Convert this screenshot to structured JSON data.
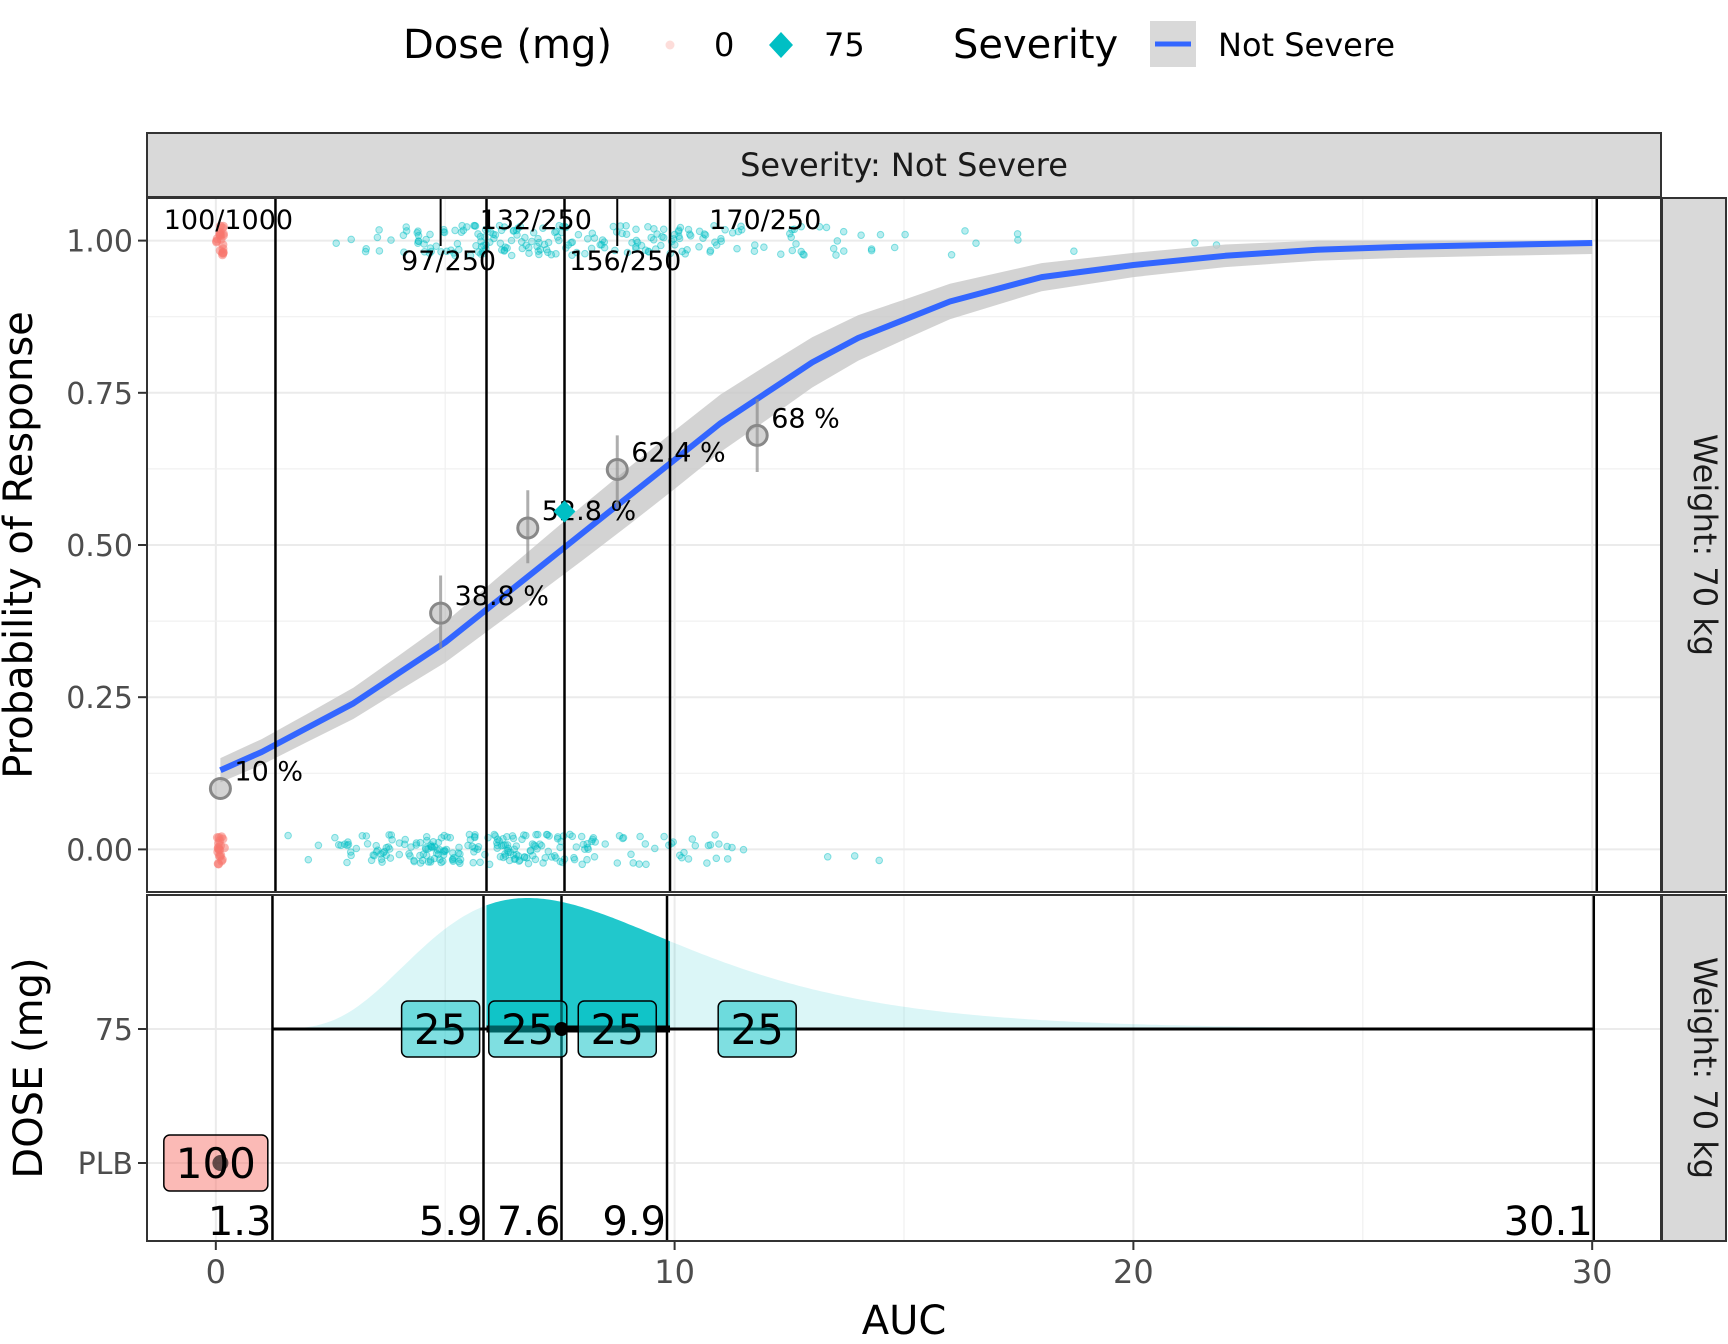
{
  "legend": {
    "dose_title": "Dose (mg)",
    "dose_items": [
      {
        "label": "0",
        "color": "#F8766D",
        "shape": "circle"
      },
      {
        "label": "75",
        "color": "#00BFC4",
        "shape": "diamond"
      }
    ],
    "severity_title": "Severity",
    "severity_items": [
      {
        "label": "Not Severe",
        "color": "#3366FF"
      }
    ]
  },
  "strips": {
    "top": "Severity: Not Severe",
    "right_upper": "Weight: 70 kg",
    "right_lower": "Weight: 70 kg"
  },
  "axes": {
    "xlabel": "AUC",
    "ylabel_upper": "Probability of Response",
    "ylabel_lower": "DOSE (mg)",
    "x_ticks": [
      "0",
      "10",
      "20",
      "30"
    ],
    "y_ticks_upper": [
      "0.00",
      "0.25",
      "0.50",
      "0.75",
      "1.00"
    ],
    "y_ticks_lower": [
      "PLB",
      "75"
    ]
  },
  "colors": {
    "placebo": "#F8766D",
    "dose75": "#00BFC4",
    "fit": "#3366FF",
    "ribbon": "#C8C8C8"
  },
  "chart_data": {
    "type": "scatter",
    "xlim": [
      -1.5,
      31.5
    ],
    "ylim": [
      -0.07,
      1.07
    ],
    "grid": true,
    "logistic_fit": {
      "name": "Not Severe",
      "x": [
        0.1,
        1,
        2,
        3,
        4,
        5,
        6,
        7,
        8,
        9,
        10,
        11,
        12,
        13,
        14,
        15,
        16,
        18,
        20,
        22,
        24,
        26,
        28,
        30
      ],
      "y": [
        0.13,
        0.16,
        0.2,
        0.24,
        0.29,
        0.34,
        0.4,
        0.46,
        0.52,
        0.58,
        0.64,
        0.7,
        0.75,
        0.8,
        0.84,
        0.87,
        0.9,
        0.94,
        0.96,
        0.975,
        0.985,
        0.99,
        0.993,
        0.996
      ]
    },
    "binned_means": [
      {
        "x": 0.1,
        "y": 0.1,
        "label": "10 %",
        "lo": 0.1,
        "hi": 0.1
      },
      {
        "x": 4.9,
        "y": 0.388,
        "label": "38.8 %",
        "lo": 0.33,
        "hi": 0.45
      },
      {
        "x": 6.8,
        "y": 0.528,
        "label": "52.8 %",
        "lo": 0.47,
        "hi": 0.59
      },
      {
        "x": 8.75,
        "y": 0.624,
        "label": "62.4 %",
        "lo": 0.56,
        "hi": 0.68
      },
      {
        "x": 11.8,
        "y": 0.68,
        "label": "68 %",
        "lo": 0.62,
        "hi": 0.74
      }
    ],
    "dose_mean": {
      "x": 7.6,
      "y": 0.555
    },
    "bin_counts": [
      {
        "label": "100/1000",
        "x": 0.1,
        "pos": "top"
      },
      {
        "label": "97/250",
        "x": 4.9,
        "pos": "bottom"
      },
      {
        "label": "132/250",
        "x": 6.8,
        "pos": "top"
      },
      {
        "label": "156/250",
        "x": 8.75,
        "pos": "bottom"
      },
      {
        "label": "170/250",
        "x": 11.8,
        "pos": "top"
      }
    ],
    "quantile_lines": [
      1.3,
      5.9,
      7.6,
      9.9,
      30.1
    ],
    "quantile_labels": [
      "1.3",
      "5.9",
      "7.6",
      "9.9",
      "30.1"
    ],
    "upper_ticks": [
      4.9,
      8.75
    ],
    "exposure_counts": [
      {
        "label": "25",
        "x": 4.9,
        "dose": "75"
      },
      {
        "label": "25",
        "x": 6.8,
        "dose": "75"
      },
      {
        "label": "25",
        "x": 8.75,
        "dose": "75"
      },
      {
        "label": "25",
        "x": 11.8,
        "dose": "75"
      },
      {
        "label": "100",
        "x": 0,
        "dose": "PLB"
      }
    ],
    "exposure_range_75": [
      1.3,
      30.1
    ],
    "exposure_iqr_75": [
      5.9,
      9.9
    ],
    "exposure_median_75": 7.6
  }
}
